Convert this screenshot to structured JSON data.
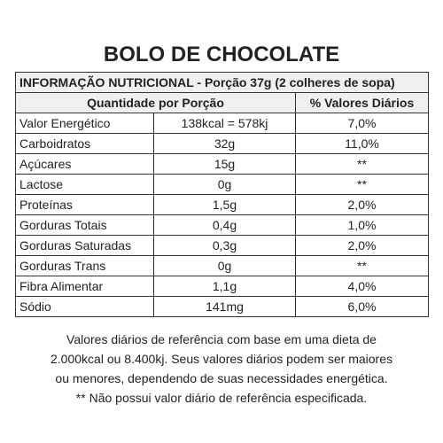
{
  "title": "BOLO DE CHOCOLATE",
  "info_header": "INFORMAÇÃO NUTRICIONAL - Porção 37g (2 colheres de sopa)",
  "col_quantity": "Quantidade por Porção",
  "col_daily": "% Valores Diários",
  "rows": [
    {
      "name": "Valor Energético",
      "amount": "138kcal = 578kj",
      "dv": "7,0%"
    },
    {
      "name": "Carboidratos",
      "amount": "32g",
      "dv": "11,0%"
    },
    {
      "name": "Açúcares",
      "amount": "15g",
      "dv": "**"
    },
    {
      "name": "Lactose",
      "amount": "0g",
      "dv": "**"
    },
    {
      "name": "Proteínas",
      "amount": "1,5g",
      "dv": "2,0%"
    },
    {
      "name": "Gorduras Totais",
      "amount": "0,4g",
      "dv": "1,0%"
    },
    {
      "name": "Gorduras Saturadas",
      "amount": "0,3g",
      "dv": "2,0%"
    },
    {
      "name": "Gorduras Trans",
      "amount": "0g",
      "dv": "**"
    },
    {
      "name": "Fibra Alimentar",
      "amount": "1,1g",
      "dv": "4,0%"
    },
    {
      "name": "Sódio",
      "amount": "141mg",
      "dv": "6,0%"
    }
  ],
  "footer": [
    "Valores diários de referência com base em uma dieta de",
    "2.000kcal ou 8.400kj. Seus valores diários podem ser maiores",
    "ou menores, dependendo de suas necessidades energética.",
    "** Não possui valor diário de referência especificada."
  ]
}
